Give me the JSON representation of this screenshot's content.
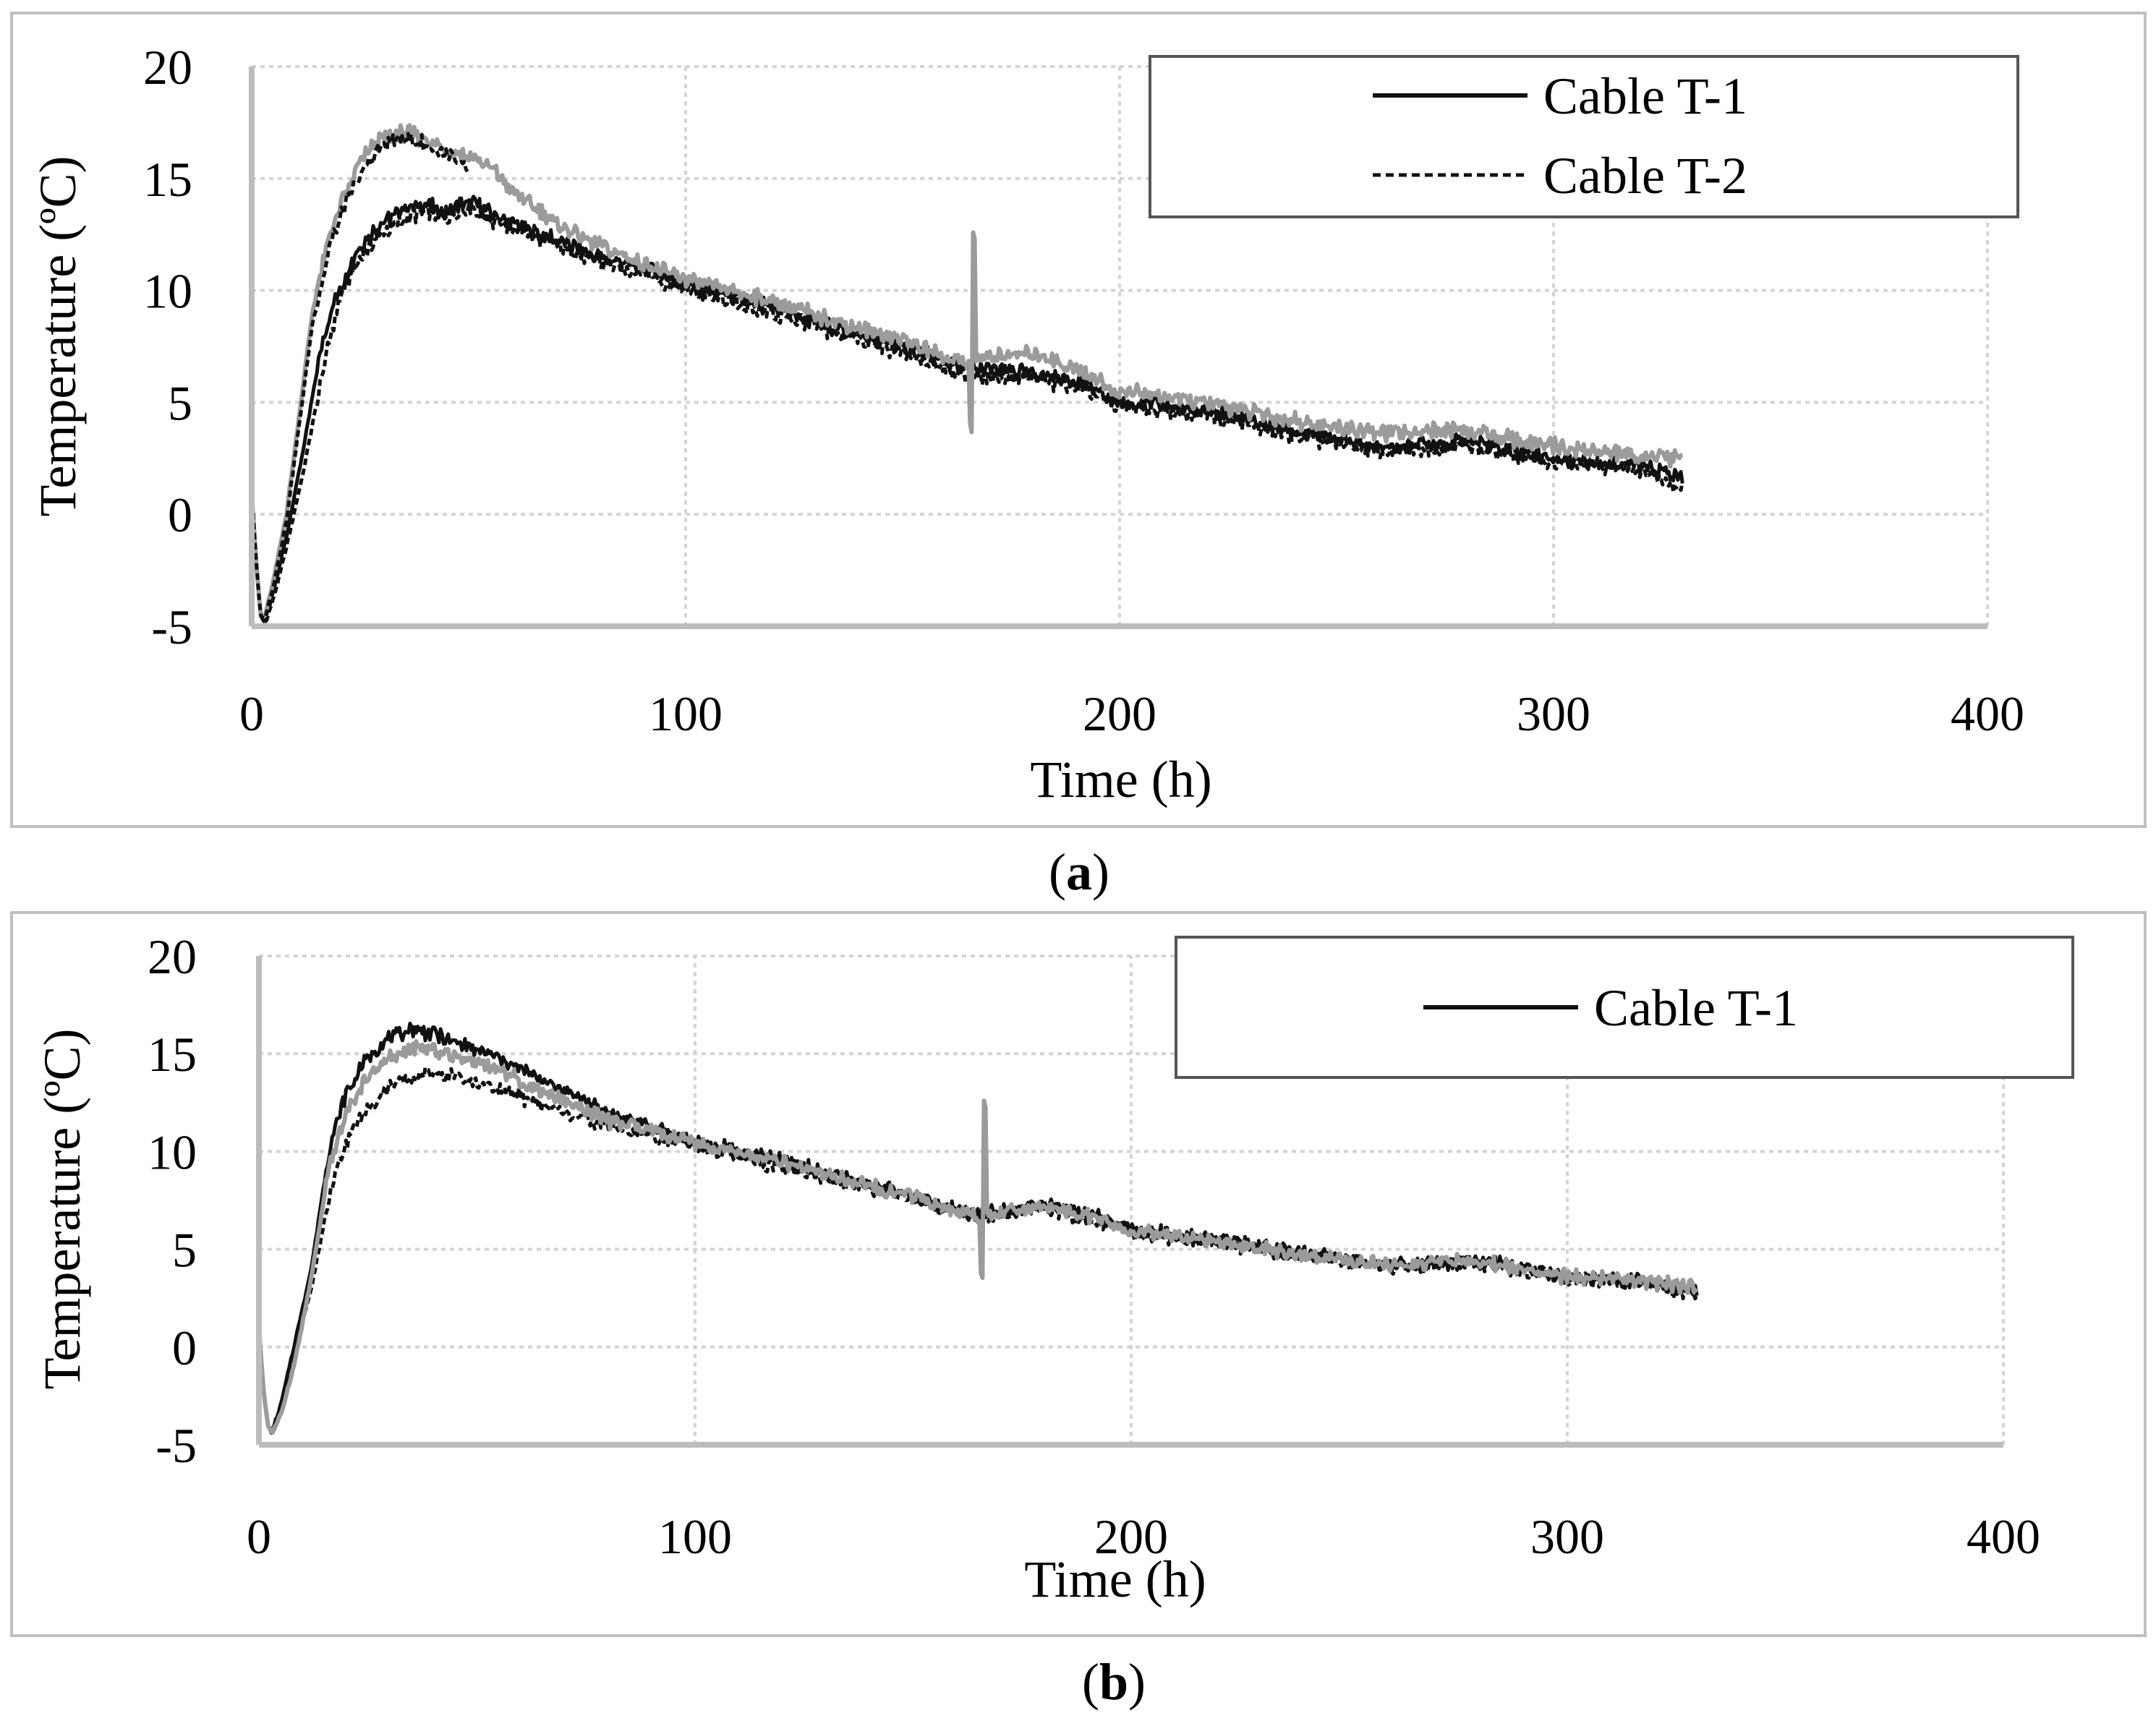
{
  "chart_data": [
    {
      "panel_label": "a",
      "type": "line",
      "title": "",
      "xlabel": "Time (h)",
      "ylabel": "Temperature (ºC)",
      "xlim": [
        0,
        400
      ],
      "ylim": [
        -5,
        20
      ],
      "xticks": [
        "0",
        "100",
        "200",
        "300",
        "400"
      ],
      "yticks": [
        "-5",
        "0",
        "5",
        "10",
        "15",
        "20"
      ],
      "grid": true,
      "legend_position": "top-right",
      "legend": [
        {
          "label": "Cable T-1",
          "style": "solid"
        },
        {
          "label": "Cable T-2",
          "style": "dashed"
        }
      ],
      "series": [
        {
          "name": "Cable T-1 (outer)",
          "style": "solid",
          "color": "#111111",
          "x": [
            0,
            1,
            2,
            3,
            5,
            8,
            12,
            16,
            20,
            25,
            30,
            35,
            40,
            45,
            50,
            55,
            60,
            70,
            80,
            90,
            100,
            120,
            140,
            150,
            160,
            165,
            170,
            180,
            190,
            200,
            220,
            240,
            260,
            280,
            300,
            320,
            330
          ],
          "y": [
            1,
            -2,
            -4.5,
            -4.8,
            -3.5,
            -1,
            3,
            7.5,
            10,
            12,
            13,
            13.6,
            13.8,
            13.5,
            14,
            13.5,
            13,
            12.3,
            11.5,
            11,
            10.3,
            9.2,
            8,
            7.5,
            6.8,
            6.5,
            6.5,
            6.3,
            6,
            5,
            4.7,
            3.7,
            3,
            3.3,
            2.5,
            2.2,
            1.5
          ]
        },
        {
          "name": "Cable T-2 (outer)",
          "style": "dashed",
          "color": "#111111",
          "x": [
            0,
            1,
            2,
            3,
            5,
            8,
            12,
            16,
            20,
            25,
            30,
            35,
            40,
            45,
            50,
            55,
            60,
            70,
            80,
            90,
            100,
            120,
            140,
            150,
            160,
            165,
            170,
            180,
            190,
            200,
            220,
            240,
            260,
            280,
            300,
            320,
            330
          ],
          "y": [
            1,
            -2,
            -4.5,
            -4.9,
            -3.8,
            -1.5,
            2,
            6,
            9.5,
            11.5,
            12.5,
            13.2,
            13.6,
            13.2,
            13.7,
            13.2,
            12.8,
            12,
            11.2,
            10.8,
            10,
            9,
            7.8,
            7.2,
            6.5,
            6.2,
            6.2,
            6,
            5.8,
            4.8,
            4.5,
            3.5,
            2.8,
            3.1,
            2.3,
            2,
            1.2
          ]
        },
        {
          "name": "Cable T-1 (inner)",
          "style": "solid",
          "color": "#9b9b9b",
          "x": [
            0,
            1,
            2,
            3,
            5,
            8,
            10,
            14,
            18,
            22,
            26,
            30,
            35,
            40,
            45,
            50,
            55,
            60,
            70,
            80,
            90,
            100,
            120,
            140,
            150,
            160,
            165,
            170,
            180,
            190,
            200,
            220,
            240,
            260,
            280,
            300,
            320,
            330
          ],
          "y": [
            1,
            -2,
            -4.5,
            -4.6,
            -3,
            0,
            3,
            9,
            12.5,
            14.5,
            16,
            16.8,
            17,
            16.8,
            16.3,
            16,
            15.5,
            14.5,
            13,
            12,
            11.2,
            10.5,
            9.5,
            8.3,
            7.8,
            7,
            6.8,
            7,
            7.2,
            6.5,
            5.5,
            5,
            4.2,
            3.6,
            3.8,
            3,
            2.6,
            2.5
          ]
        },
        {
          "name": "Cable T-2 (inner)",
          "style": "dashed",
          "color": "#111111",
          "x": [
            0,
            1,
            2,
            3,
            5,
            8,
            10,
            14,
            18,
            22,
            26,
            30,
            35,
            40,
            45,
            50
          ],
          "y": [
            1,
            -2,
            -4.5,
            -4.7,
            -3.2,
            -0.3,
            2.6,
            8.5,
            12,
            14,
            15.5,
            16.5,
            16.8,
            16.5,
            16,
            15.3
          ]
        }
      ]
    },
    {
      "panel_label": "b",
      "type": "line",
      "title": "",
      "xlabel": "Time (h)",
      "ylabel": "Temperature (ºC)",
      "xlim": [
        0,
        400
      ],
      "ylim": [
        -5,
        20
      ],
      "xticks": [
        "0",
        "100",
        "200",
        "300",
        "400"
      ],
      "yticks": [
        "-5",
        "0",
        "5",
        "10",
        "15",
        "20"
      ],
      "grid": true,
      "legend_position": "top-right",
      "legend": [
        {
          "label": "Cable T-1",
          "style": "solid"
        }
      ],
      "series": [
        {
          "name": "Cable T-1 (outer)",
          "style": "solid",
          "color": "#111111",
          "x": [
            0,
            1,
            2,
            3,
            5,
            8,
            12,
            16,
            20,
            25,
            30,
            35,
            40,
            45,
            50,
            55,
            60,
            70,
            80,
            90,
            100,
            120,
            140,
            150,
            160,
            165,
            170,
            180,
            190,
            200,
            220,
            240,
            260,
            280,
            300,
            320,
            330
          ],
          "y": [
            1,
            -2,
            -4,
            -4.3,
            -3,
            0,
            4,
            10,
            13,
            14.8,
            15.8,
            16.2,
            16,
            15.6,
            15.2,
            14.8,
            14.2,
            13.2,
            12,
            11.2,
            10.5,
            9.5,
            8.3,
            7.8,
            7,
            6.8,
            7,
            7.3,
            6.8,
            6,
            5.5,
            4.8,
            4.2,
            4.4,
            3.6,
            3.3,
            2.8
          ]
        },
        {
          "name": "Cable T-2 (outer)",
          "style": "dashed",
          "color": "#111111",
          "x": [
            0,
            1,
            2,
            3,
            5,
            8,
            12,
            16,
            20,
            25,
            30,
            35,
            40,
            45,
            50,
            55,
            60,
            70,
            80,
            90,
            100,
            120,
            140,
            150,
            160,
            165,
            170,
            180,
            190,
            200,
            220,
            240,
            260,
            280,
            300,
            320,
            330
          ],
          "y": [
            1,
            -2,
            -4,
            -4.5,
            -3.3,
            -0.5,
            3,
            7.5,
            10.5,
            12.3,
            13.3,
            13.8,
            14,
            13.8,
            13.5,
            13.2,
            12.8,
            12,
            11.3,
            10.8,
            10.2,
            9.2,
            8.1,
            7.6,
            6.9,
            6.7,
            6.8,
            7.1,
            6.6,
            5.8,
            5.3,
            4.6,
            4.1,
            4.3,
            3.5,
            3.2,
            2.7
          ]
        },
        {
          "name": "Cable T-1 (inner)",
          "style": "solid",
          "color": "#9b9b9b",
          "x": [
            0,
            1,
            2,
            3,
            5,
            8,
            12,
            16,
            20,
            25,
            30,
            35,
            40,
            45,
            50,
            55,
            60,
            70,
            80,
            90,
            100,
            120,
            140,
            150,
            160,
            165,
            170,
            180,
            190,
            200,
            220,
            240,
            260,
            280,
            300,
            320,
            330
          ],
          "y": [
            1,
            -2,
            -4,
            -4.4,
            -3.5,
            -1,
            3.5,
            9,
            12,
            13.8,
            14.8,
            15.2,
            15.2,
            14.9,
            14.6,
            14.2,
            13.6,
            12.6,
            11.6,
            11,
            10.4,
            9.4,
            8.2,
            7.7,
            6.9,
            6.7,
            6.9,
            7.2,
            6.7,
            5.9,
            5.4,
            4.7,
            4.2,
            4.4,
            3.6,
            3.3,
            3
          ]
        }
      ]
    }
  ],
  "captions": {
    "a": "(a)",
    "b": "(b)"
  }
}
